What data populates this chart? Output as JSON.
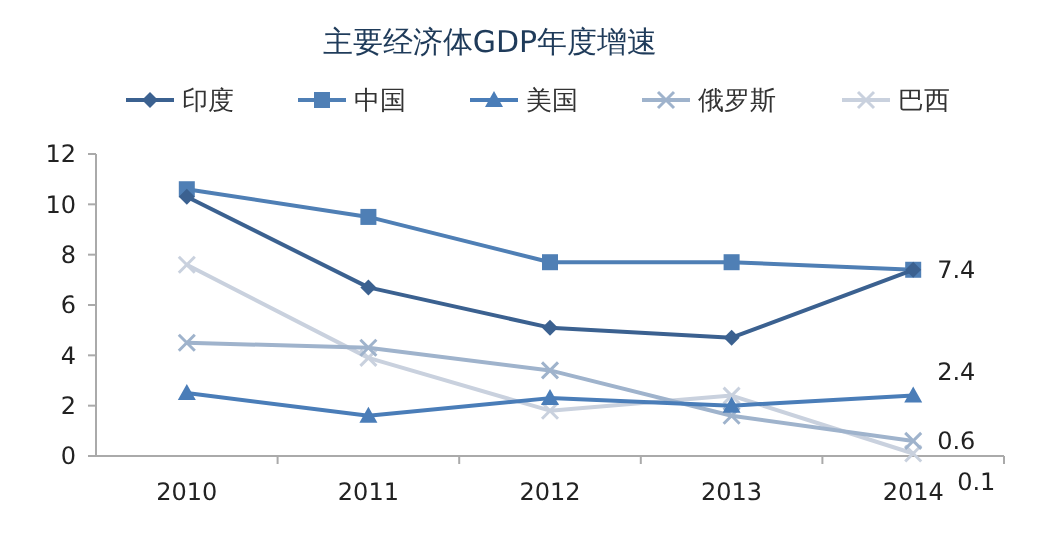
{
  "chart_data": {
    "type": "line",
    "title": "主要经济体GDP年度增速",
    "categories": [
      "2010",
      "2011",
      "2012",
      "2013",
      "2014"
    ],
    "series": [
      {
        "name": "印度",
        "color": "#3b6190",
        "marker": "diamond",
        "values": [
          10.3,
          6.7,
          5.1,
          4.7,
          7.4
        ]
      },
      {
        "name": "中国",
        "color": "#4f7fb5",
        "marker": "square",
        "values": [
          10.6,
          9.5,
          7.7,
          7.7,
          7.4
        ]
      },
      {
        "name": "美国",
        "color": "#4a7db8",
        "marker": "triangle",
        "values": [
          2.5,
          1.6,
          2.3,
          2.0,
          2.4
        ]
      },
      {
        "name": "俄罗斯",
        "color": "#9fb3cc",
        "marker": "cross",
        "values": [
          4.5,
          4.3,
          3.4,
          1.6,
          0.6
        ]
      },
      {
        "name": "巴西",
        "color": "#c9d1de",
        "marker": "cross",
        "values": [
          7.6,
          3.9,
          1.8,
          2.4,
          0.1
        ]
      }
    ],
    "ylim": [
      0,
      12
    ],
    "yticks": [
      0,
      2,
      4,
      6,
      8,
      10,
      12
    ],
    "grid": false,
    "legend": "top",
    "annotations": [
      {
        "text": "7.4",
        "x": "2014",
        "y": 7.4
      },
      {
        "text": "2.4",
        "x": "2014",
        "y": 2.4
      },
      {
        "text": "0.6",
        "x": "2014",
        "y": 0.6
      },
      {
        "text": "0.1",
        "x": "2014",
        "y": 0.1
      }
    ]
  }
}
